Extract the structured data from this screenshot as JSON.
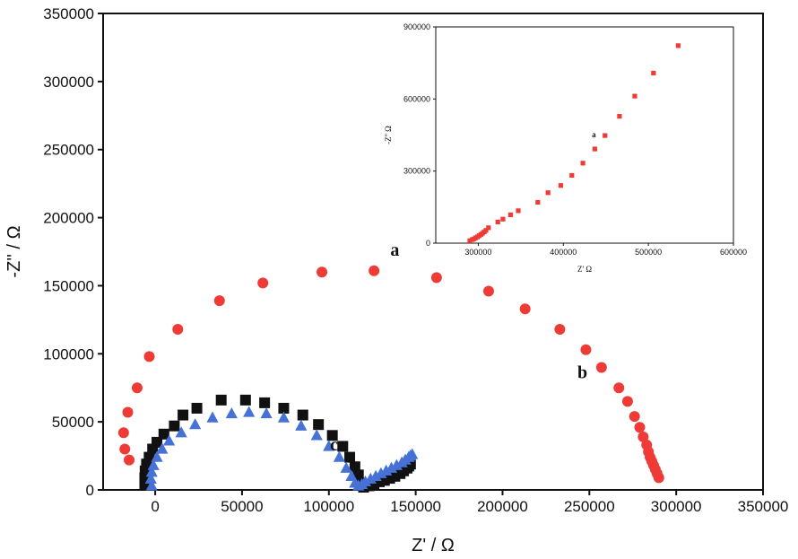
{
  "chart_data": [
    {
      "type": "scatter",
      "xlabel": "Z' / Ω",
      "ylabel": "-Z'' / Ω",
      "xlim": [
        -30000,
        350000
      ],
      "ylim": [
        0,
        350000
      ],
      "xticks": [
        "0",
        "50000",
        "100000",
        "150000",
        "200000",
        "250000",
        "300000",
        "350000"
      ],
      "yticks": [
        "0",
        "50000",
        "100000",
        "150000",
        "200000",
        "250000",
        "300000",
        "350000"
      ],
      "series": [
        {
          "name": "a",
          "marker": "circle",
          "color": "#ef3b36",
          "x": [
            -15000,
            -17500,
            -18200,
            -15800,
            -10400,
            -3400,
            13000,
            37000,
            62000,
            96000,
            126000,
            162000,
            192000,
            213000,
            233000,
            248000,
            257000,
            267000,
            272000,
            276000,
            279000,
            281000,
            283000,
            284000,
            285000,
            286000,
            287000,
            288000,
            289000,
            290000
          ],
          "y": [
            22000,
            30000,
            42000,
            57000,
            75000,
            98000,
            118000,
            139000,
            152000,
            160000,
            161000,
            156000,
            146000,
            133000,
            118000,
            103000,
            90000,
            75000,
            65000,
            54000,
            46000,
            39000,
            33000,
            28000,
            24000,
            21000,
            18000,
            15000,
            12000,
            9000
          ]
        },
        {
          "name": "b",
          "marker": "square",
          "color": "#111111",
          "x": [
            -6000,
            -6000,
            -5800,
            -5000,
            -3500,
            -1500,
            1000,
            5000,
            11000,
            16000,
            24000,
            38000,
            52000,
            63000,
            74000,
            85000,
            94000,
            102000,
            108000,
            112000,
            115000,
            117000,
            118000,
            120000,
            123000,
            126000,
            129000,
            132000,
            135000,
            138000,
            141000,
            143000,
            145000,
            146000,
            147000
          ],
          "y": [
            4000,
            9000,
            14000,
            19000,
            24000,
            30000,
            35000,
            41000,
            47000,
            55000,
            60000,
            66000,
            66000,
            64000,
            60000,
            55000,
            48000,
            40000,
            32000,
            24000,
            17000,
            11000,
            5000,
            2000,
            3000,
            4500,
            6000,
            7000,
            8500,
            10000,
            12000,
            14000,
            16000,
            17500,
            19000
          ]
        },
        {
          "name": "c",
          "marker": "triangle",
          "color": "#4672d6",
          "x": [
            -2000,
            -2500,
            -2000,
            -1000,
            1000,
            4000,
            8000,
            15000,
            23000,
            33000,
            44000,
            54000,
            64000,
            74000,
            84000,
            93000,
            100000,
            106000,
            110000,
            113000,
            115000,
            117000,
            119000,
            121000,
            124000,
            127000,
            130000,
            133000,
            136000,
            139000,
            142000,
            144000,
            146000,
            147000,
            148000
          ],
          "y": [
            3000,
            8000,
            13000,
            18000,
            24000,
            30000,
            36000,
            42000,
            48000,
            53000,
            56000,
            57000,
            56000,
            53000,
            47000,
            40000,
            32000,
            24000,
            16000,
            10000,
            5000,
            3000,
            4000,
            6000,
            8000,
            10000,
            12000,
            14000,
            16000,
            18000,
            20000,
            22000,
            24000,
            25000,
            26000
          ]
        }
      ],
      "annotations": [
        {
          "text": "a",
          "x": 138000,
          "y": 172000
        },
        {
          "text": "b",
          "x": 246000,
          "y": 82000
        },
        {
          "text": "c",
          "x": 103000,
          "y": 29000
        }
      ],
      "grid": false
    },
    {
      "type": "scatter",
      "xlabel": "Z' Ω",
      "ylabel": "-Z'' Ω",
      "xlim": [
        250000,
        600000
      ],
      "ylim": [
        0,
        900000
      ],
      "xticks": [
        "300000",
        "400000",
        "500000",
        "600000"
      ],
      "yticks": [
        "0",
        "300000",
        "600000",
        "900000"
      ],
      "series": [
        {
          "name": "a",
          "marker": "square",
          "color": "#ef3b36",
          "x": [
            290000,
            293000,
            295000,
            297000,
            299000,
            301000,
            303000,
            305000,
            307000,
            309000,
            312000,
            323000,
            329000,
            338000,
            347000,
            370000,
            382000,
            397000,
            410000,
            423000,
            437000,
            449000,
            466000,
            484000,
            506000,
            535000
          ],
          "y": [
            10000,
            15000,
            18000,
            22000,
            26000,
            31000,
            36000,
            41000,
            47000,
            53000,
            64000,
            88000,
            100000,
            118000,
            135000,
            170000,
            210000,
            240000,
            282000,
            333000,
            392000,
            448000,
            528000,
            612000,
            708000,
            822000
          ]
        }
      ],
      "annotations": [
        {
          "text": "a",
          "x": 436000,
          "y": 440000
        }
      ],
      "grid": false
    }
  ]
}
